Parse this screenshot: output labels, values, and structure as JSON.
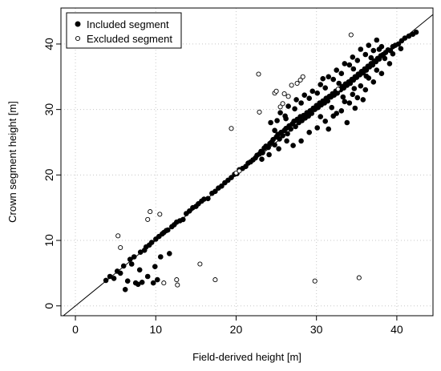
{
  "chart_data": {
    "type": "scatter",
    "xlabel": "Field-derived height [m]",
    "ylabel": "Crown segment height [m]",
    "xlim": [
      -1.8,
      44.5
    ],
    "ylim": [
      -1.5,
      45.5
    ],
    "xticks": [
      0,
      10,
      20,
      30,
      40
    ],
    "yticks": [
      0,
      10,
      20,
      30,
      40
    ],
    "grid": true,
    "legend_position": "top-left",
    "reference_line": "1:1",
    "series": [
      {
        "name": "Included segment",
        "marker": "filled-circle",
        "points": [
          [
            3.8,
            3.9
          ],
          [
            4.3,
            4.5
          ],
          [
            4.8,
            4.2
          ],
          [
            5.2,
            5.3
          ],
          [
            5.6,
            5.0
          ],
          [
            6.0,
            6.1
          ],
          [
            6.2,
            2.5
          ],
          [
            6.5,
            3.8
          ],
          [
            6.8,
            7.1
          ],
          [
            7.0,
            6.4
          ],
          [
            7.3,
            7.5
          ],
          [
            7.5,
            3.5
          ],
          [
            7.8,
            3.3
          ],
          [
            8.0,
            5.5
          ],
          [
            8.1,
            8.2
          ],
          [
            8.3,
            3.6
          ],
          [
            8.6,
            8.5
          ],
          [
            8.8,
            9.0
          ],
          [
            9.0,
            4.5
          ],
          [
            9.2,
            9.3
          ],
          [
            9.5,
            9.7
          ],
          [
            9.7,
            3.5
          ],
          [
            9.9,
            6.0
          ],
          [
            10.0,
            10.2
          ],
          [
            10.2,
            4.0
          ],
          [
            10.4,
            10.6
          ],
          [
            10.6,
            7.5
          ],
          [
            10.8,
            11.0
          ],
          [
            11.0,
            11.2
          ],
          [
            11.3,
            11.5
          ],
          [
            11.5,
            11.6
          ],
          [
            11.7,
            8.0
          ],
          [
            12.0,
            12.1
          ],
          [
            12.3,
            12.4
          ],
          [
            12.6,
            12.8
          ],
          [
            13.0,
            13.0
          ],
          [
            13.4,
            13.2
          ],
          [
            13.8,
            14.1
          ],
          [
            14.2,
            14.5
          ],
          [
            14.6,
            15.0
          ],
          [
            15.0,
            15.2
          ],
          [
            15.3,
            15.6
          ],
          [
            15.7,
            16.0
          ],
          [
            16.0,
            16.3
          ],
          [
            16.5,
            16.4
          ],
          [
            17.0,
            17.2
          ],
          [
            17.4,
            17.5
          ],
          [
            17.8,
            18.0
          ],
          [
            18.2,
            18.3
          ],
          [
            18.6,
            18.8
          ],
          [
            19.0,
            19.2
          ],
          [
            19.4,
            19.6
          ],
          [
            19.8,
            20.1
          ],
          [
            20.1,
            20.2
          ],
          [
            20.4,
            20.8
          ],
          [
            20.8,
            21.0
          ],
          [
            21.2,
            21.3
          ],
          [
            21.5,
            21.8
          ],
          [
            21.8,
            22.0
          ],
          [
            22.1,
            22.3
          ],
          [
            22.4,
            22.6
          ],
          [
            22.6,
            23.0
          ],
          [
            22.9,
            23.2
          ],
          [
            23.1,
            23.6
          ],
          [
            23.3,
            23.4
          ],
          [
            23.5,
            24.1
          ],
          [
            23.7,
            24.4
          ],
          [
            24.0,
            24.2
          ],
          [
            24.2,
            24.8
          ],
          [
            24.4,
            25.0
          ],
          [
            24.6,
            25.4
          ],
          [
            24.8,
            24.6
          ],
          [
            25.0,
            25.8
          ],
          [
            25.2,
            26.2
          ],
          [
            25.4,
            25.5
          ],
          [
            25.6,
            26.5
          ],
          [
            25.8,
            26.0
          ],
          [
            26.0,
            26.8
          ],
          [
            26.2,
            27.1
          ],
          [
            26.4,
            26.3
          ],
          [
            26.6,
            27.5
          ],
          [
            26.8,
            27.0
          ],
          [
            27.0,
            27.8
          ],
          [
            27.2,
            28.2
          ],
          [
            27.4,
            27.4
          ],
          [
            27.6,
            28.5
          ],
          [
            27.8,
            28.0
          ],
          [
            28.0,
            28.9
          ],
          [
            28.2,
            28.3
          ],
          [
            28.4,
            29.1
          ],
          [
            28.6,
            28.7
          ],
          [
            28.8,
            29.5
          ],
          [
            29.0,
            29.0
          ],
          [
            29.2,
            29.8
          ],
          [
            29.4,
            29.4
          ],
          [
            29.6,
            30.2
          ],
          [
            29.8,
            30.0
          ],
          [
            30.0,
            30.6
          ],
          [
            30.2,
            30.3
          ],
          [
            30.4,
            31.0
          ],
          [
            30.6,
            30.7
          ],
          [
            30.8,
            31.3
          ],
          [
            31.0,
            31.0
          ],
          [
            31.2,
            31.7
          ],
          [
            31.4,
            31.3
          ],
          [
            31.6,
            32.0
          ],
          [
            31.8,
            31.9
          ],
          [
            32.0,
            32.4
          ],
          [
            32.2,
            32.2
          ],
          [
            32.4,
            32.8
          ],
          [
            32.6,
            32.5
          ],
          [
            32.8,
            33.1
          ],
          [
            33.0,
            33.0
          ],
          [
            33.2,
            33.5
          ],
          [
            33.4,
            33.3
          ],
          [
            33.6,
            33.9
          ],
          [
            33.8,
            33.7
          ],
          [
            34.0,
            34.2
          ],
          [
            34.2,
            34.0
          ],
          [
            34.4,
            34.6
          ],
          [
            34.6,
            34.5
          ],
          [
            34.8,
            35.0
          ],
          [
            35.0,
            34.9
          ],
          [
            35.2,
            35.4
          ],
          [
            35.4,
            35.3
          ],
          [
            35.6,
            35.8
          ],
          [
            35.8,
            35.6
          ],
          [
            36.0,
            36.2
          ],
          [
            36.2,
            36.0
          ],
          [
            36.4,
            36.6
          ],
          [
            36.6,
            36.5
          ],
          [
            36.8,
            37.0
          ],
          [
            37.0,
            36.8
          ],
          [
            37.2,
            37.4
          ],
          [
            37.4,
            37.3
          ],
          [
            37.6,
            37.8
          ],
          [
            37.8,
            37.7
          ],
          [
            38.0,
            38.2
          ],
          [
            38.3,
            38.4
          ],
          [
            38.6,
            38.7
          ],
          [
            38.9,
            39.1
          ],
          [
            39.2,
            39.0
          ],
          [
            39.5,
            39.6
          ],
          [
            39.8,
            39.8
          ],
          [
            40.2,
            40.0
          ],
          [
            40.6,
            40.5
          ],
          [
            41.0,
            40.9
          ],
          [
            41.5,
            41.2
          ],
          [
            42.0,
            41.5
          ],
          [
            42.4,
            41.8
          ],
          [
            24.3,
            28.0
          ],
          [
            25.1,
            28.3
          ],
          [
            26.1,
            29.0
          ],
          [
            27.3,
            30.1
          ],
          [
            28.1,
            31.0
          ],
          [
            29.1,
            31.7
          ],
          [
            30.1,
            32.5
          ],
          [
            31.1,
            33.3
          ],
          [
            32.1,
            34.6
          ],
          [
            33.1,
            35.5
          ],
          [
            34.1,
            36.8
          ],
          [
            35.1,
            37.5
          ],
          [
            36.1,
            38.4
          ],
          [
            37.1,
            39.0
          ],
          [
            38.1,
            39.6
          ],
          [
            27.1,
            24.5
          ],
          [
            28.1,
            25.2
          ],
          [
            29.1,
            26.5
          ],
          [
            30.1,
            27.2
          ],
          [
            31.1,
            28.2
          ],
          [
            32.1,
            29.0
          ],
          [
            33.1,
            29.8
          ],
          [
            34.1,
            31.0
          ],
          [
            35.1,
            31.8
          ],
          [
            36.1,
            33.0
          ],
          [
            37.1,
            34.2
          ],
          [
            38.1,
            35.5
          ],
          [
            39.1,
            37.0
          ],
          [
            31.5,
            27.0
          ],
          [
            32.5,
            29.4
          ],
          [
            33.5,
            31.2
          ],
          [
            34.5,
            32.3
          ],
          [
            35.5,
            33.6
          ],
          [
            36.5,
            34.8
          ],
          [
            37.5,
            36.0
          ],
          [
            30.5,
            28.9
          ],
          [
            31.9,
            30.3
          ],
          [
            33.3,
            31.9
          ],
          [
            34.7,
            33.2
          ],
          [
            36.2,
            35.1
          ],
          [
            29.5,
            32.8
          ],
          [
            30.5,
            33.8
          ],
          [
            31.5,
            35.0
          ],
          [
            32.5,
            36.0
          ],
          [
            33.5,
            37.0
          ],
          [
            34.5,
            38.0
          ],
          [
            35.5,
            39.2
          ],
          [
            36.5,
            39.8
          ],
          [
            37.5,
            40.6
          ],
          [
            26.5,
            30.5
          ],
          [
            27.5,
            31.5
          ],
          [
            28.5,
            32.2
          ],
          [
            25.5,
            29.5
          ],
          [
            30.8,
            34.7
          ],
          [
            24.8,
            26.8
          ],
          [
            26.2,
            28.6
          ],
          [
            23.2,
            22.4
          ],
          [
            24.1,
            23.1
          ],
          [
            25.3,
            24.0
          ],
          [
            26.3,
            25.2
          ],
          [
            33.8,
            28.0
          ],
          [
            34.8,
            30.2
          ],
          [
            35.8,
            31.5
          ],
          [
            38.5,
            37.8
          ],
          [
            39.5,
            38.5
          ],
          [
            40.5,
            39.3
          ],
          [
            37.8,
            39.2
          ],
          [
            36.8,
            37.9
          ],
          [
            34.6,
            36.2
          ],
          [
            32.8,
            34.0
          ]
        ]
      },
      {
        "name": "Excluded segment",
        "marker": "open-circle",
        "points": [
          [
            5.3,
            10.7
          ],
          [
            5.6,
            8.9
          ],
          [
            9.0,
            13.2
          ],
          [
            9.3,
            14.4
          ],
          [
            10.5,
            14.0
          ],
          [
            11.0,
            3.5
          ],
          [
            12.6,
            4.0
          ],
          [
            12.7,
            3.2
          ],
          [
            15.5,
            6.4
          ],
          [
            17.4,
            4.0
          ],
          [
            19.4,
            27.1
          ],
          [
            20.0,
            20.3
          ],
          [
            20.4,
            20.6
          ],
          [
            22.8,
            35.4
          ],
          [
            22.9,
            29.6
          ],
          [
            24.8,
            32.5
          ],
          [
            25.0,
            32.8
          ],
          [
            25.5,
            30.4
          ],
          [
            25.8,
            30.9
          ],
          [
            26.0,
            32.4
          ],
          [
            26.5,
            32.0
          ],
          [
            26.9,
            33.7
          ],
          [
            27.6,
            34.0
          ],
          [
            28.0,
            34.5
          ],
          [
            28.3,
            35.0
          ],
          [
            29.8,
            3.8
          ],
          [
            32.7,
            33.1
          ],
          [
            34.3,
            41.4
          ],
          [
            35.3,
            4.3
          ]
        ]
      }
    ]
  }
}
